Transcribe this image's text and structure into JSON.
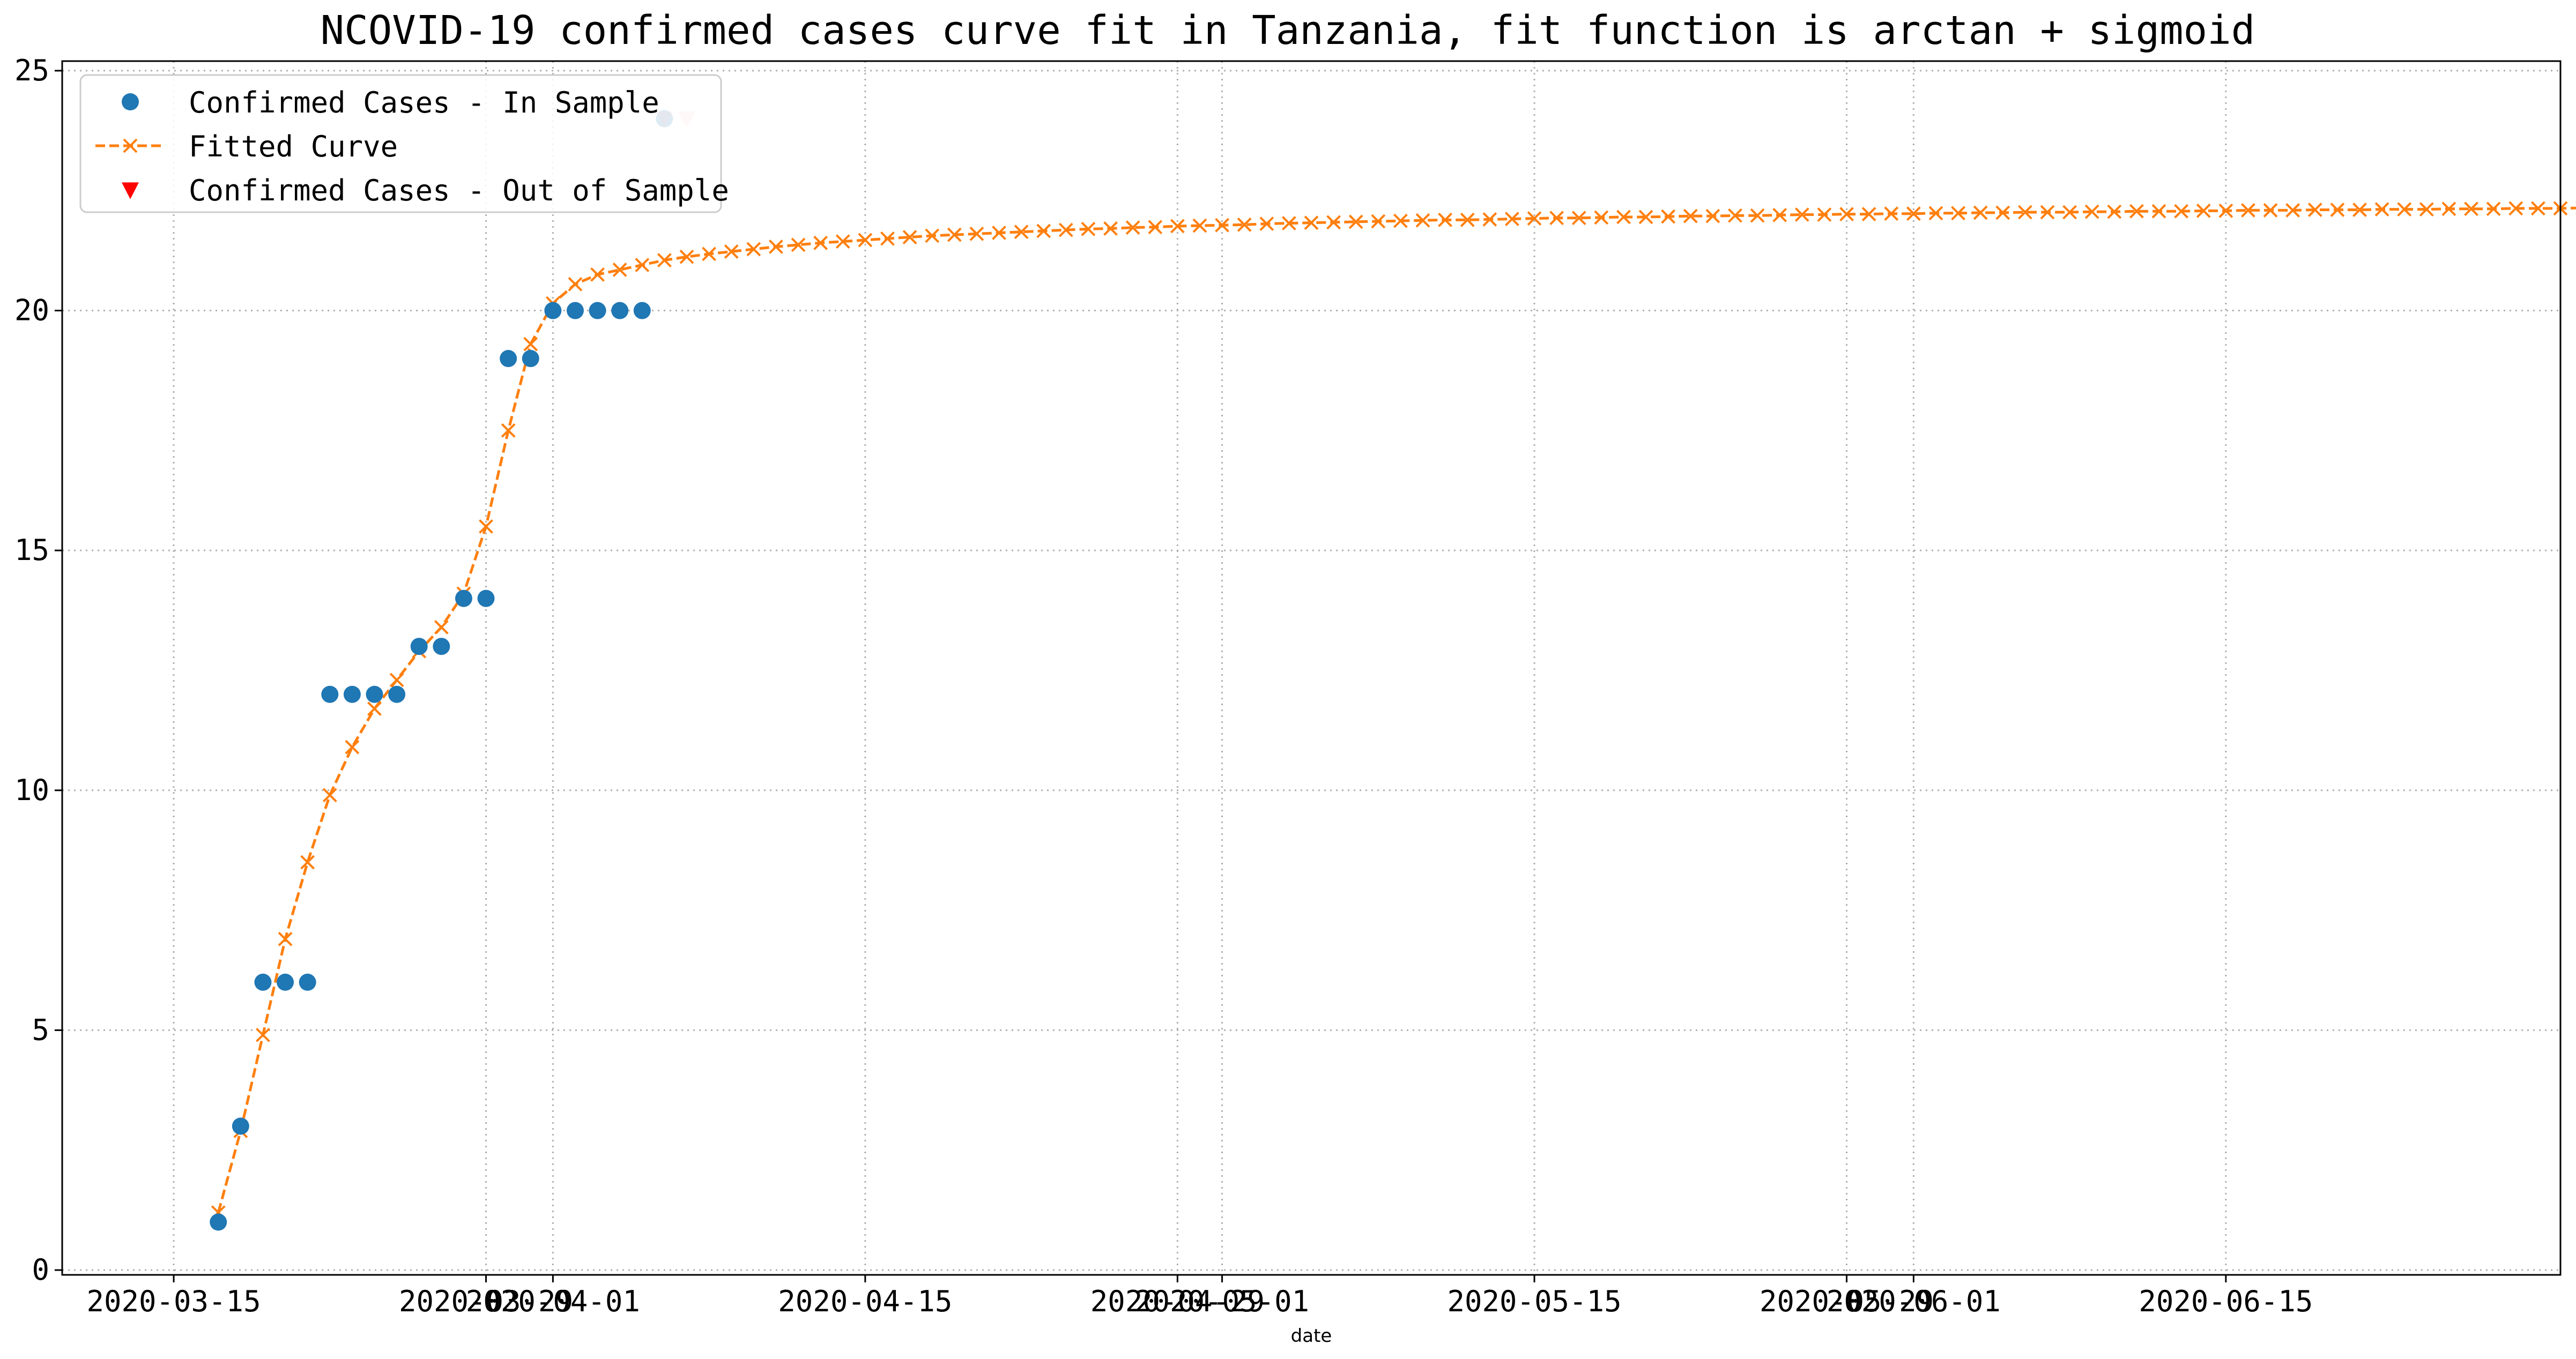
{
  "chart_data": {
    "type": "line",
    "title": "NCOVID-19 confirmed cases curve fit in Tanzania, fit function is arctan + sigmoid",
    "xlabel": "date",
    "ylabel": "",
    "xlim": [
      "2020-03-10",
      "2020-06-30"
    ],
    "ylim": [
      -0.1,
      25.2
    ],
    "grid": true,
    "legend_position": "top-left",
    "x_ticks": [
      "2020-03-15",
      "2020-03-29",
      "2020-04-01",
      "2020-04-15",
      "2020-04-29",
      "2020-05-01",
      "2020-05-15",
      "2020-05-29",
      "2020-06-01",
      "2020-06-15"
    ],
    "y_ticks": [
      0,
      5,
      10,
      15,
      20,
      25
    ],
    "colors": {
      "in_sample": "#1f77b4",
      "fitted": "#ff7f0e",
      "out_of_sample": "#ff0000"
    },
    "series": [
      {
        "name": "Confirmed Cases - In Sample",
        "marker": "circle",
        "linestyle": "none",
        "start_date": "2020-03-17",
        "values": [
          1,
          3,
          6,
          6,
          6,
          12,
          12,
          12,
          12,
          13,
          13,
          14,
          14,
          19,
          19,
          20,
          20,
          20,
          20,
          20,
          24
        ]
      },
      {
        "name": "Fitted Curve",
        "marker": "x",
        "linestyle": "dashed",
        "start_date": "2020-03-17",
        "values": [
          1.2,
          2.9,
          4.9,
          6.9,
          8.5,
          9.9,
          10.9,
          11.7,
          12.3,
          12.9,
          13.4,
          14.1,
          15.5,
          17.5,
          19.3,
          20.15,
          20.55,
          20.75,
          20.85,
          20.95,
          21.05,
          21.12,
          21.18,
          21.23,
          21.28,
          21.33,
          21.37,
          21.41,
          21.44,
          21.47,
          21.5,
          21.53,
          21.56,
          21.58,
          21.6,
          21.62,
          21.64,
          21.66,
          21.68,
          21.7,
          21.71,
          21.73,
          21.74,
          21.76,
          21.77,
          21.78,
          21.79,
          21.81,
          21.82,
          21.83,
          21.84,
          21.85,
          21.86,
          21.87,
          21.88,
          21.89,
          21.89,
          21.9,
          21.91,
          21.92,
          21.93,
          21.93,
          21.94,
          21.95,
          21.95,
          21.96,
          21.97,
          21.97,
          21.98,
          21.98,
          21.99,
          22.0,
          22.0,
          22.01,
          22.01,
          22.02,
          22.02,
          22.03,
          22.03,
          22.04,
          22.04,
          22.05,
          22.05,
          22.05,
          22.06,
          22.06,
          22.07,
          22.07,
          22.07,
          22.08,
          22.08,
          22.09,
          22.09,
          22.09,
          22.1,
          22.1,
          22.1,
          22.11,
          22.11,
          22.11,
          22.12,
          22.12,
          22.12,
          22.13,
          22.13,
          22.13,
          22.14,
          22.14,
          22.14,
          22.15
        ]
      },
      {
        "name": "Confirmed Cases - Out of Sample",
        "marker": "triangle-down",
        "linestyle": "none",
        "start_date": "2020-04-06",
        "values": [
          24,
          24
        ]
      }
    ]
  }
}
